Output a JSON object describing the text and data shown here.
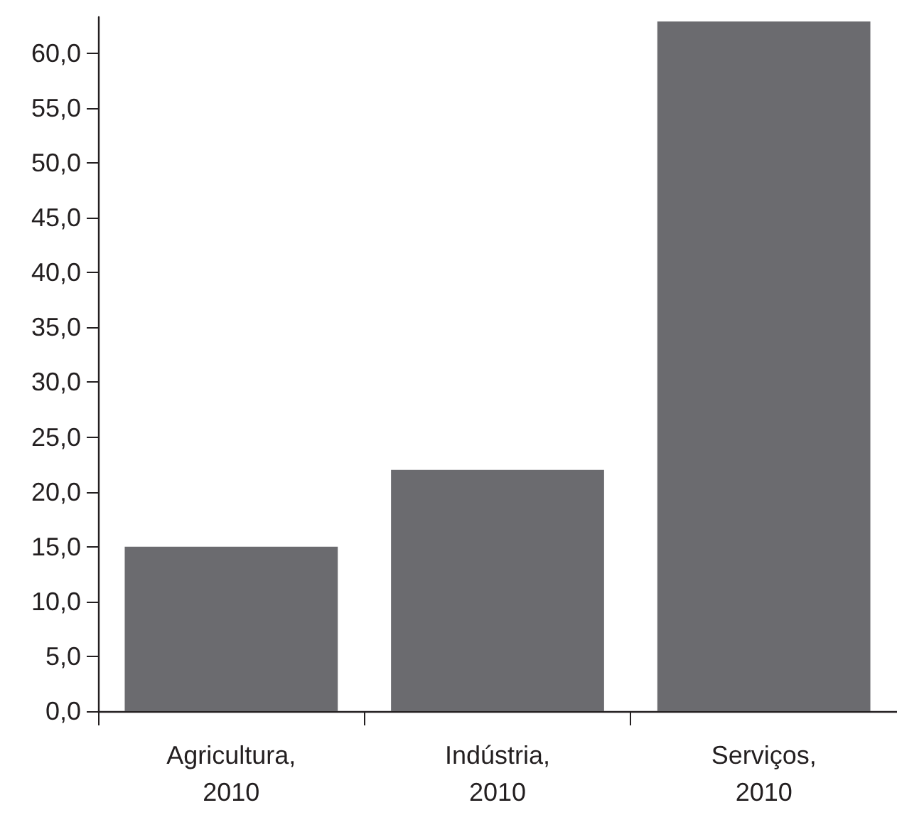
{
  "chart_data": {
    "type": "bar",
    "categories": [
      "Agricultura,\n2010",
      "Indústria,\n2010",
      "Serviços,\n2010"
    ],
    "values": [
      15,
      22,
      62.9
    ],
    "color": "#6b6b6f",
    "ylim": [
      0,
      63.3
    ],
    "yticks": [
      {
        "value": 0,
        "label": "0,0"
      },
      {
        "value": 5,
        "label": "5,0"
      },
      {
        "value": 10,
        "label": "10,0"
      },
      {
        "value": 15,
        "label": "15,0"
      },
      {
        "value": 20,
        "label": "20,0"
      },
      {
        "value": 25,
        "label": "25,0"
      },
      {
        "value": 30,
        "label": "30,0"
      },
      {
        "value": 35,
        "label": "35,0"
      },
      {
        "value": 40,
        "label": "40,0"
      },
      {
        "value": 45,
        "label": "45,0"
      },
      {
        "value": 50,
        "label": "50,0"
      },
      {
        "value": 55,
        "label": "55,0"
      },
      {
        "value": 60,
        "label": "60,0"
      }
    ],
    "grid": false
  }
}
